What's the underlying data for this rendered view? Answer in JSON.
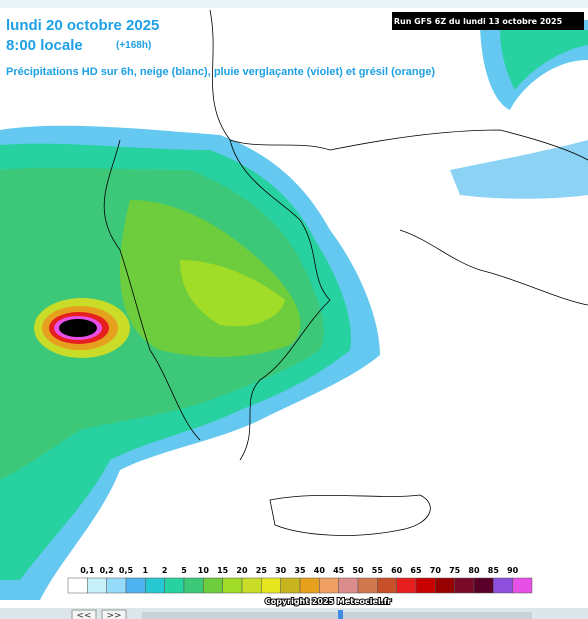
{
  "header": {
    "date": "lundi 20 octobre 2025",
    "time": "8:00 locale",
    "lead": "(+168h)",
    "subtitle": "Précipitations HD sur 6h, neige (blanc), pluie verglaçante (violet) et grésil (orange)",
    "run": "Run GFS 6Z du lundi 13 octobre 2025"
  },
  "legend": {
    "labels": [
      "0,1",
      "0,2",
      "0,5",
      "1",
      "2",
      "5",
      "10",
      "15",
      "20",
      "25",
      "30",
      "35",
      "40",
      "45",
      "50",
      "55",
      "60",
      "65",
      "70",
      "75",
      "80",
      "85",
      "90"
    ],
    "colors": [
      "#ffffff",
      "#c8f0fa",
      "#96dcfa",
      "#50b4f0",
      "#28c8d2",
      "#28d2a0",
      "#3cc878",
      "#6ecd3c",
      "#a0dc28",
      "#c8dc28",
      "#e6e61e",
      "#c8b41e",
      "#e6a01e",
      "#f0a064",
      "#dc8c8c",
      "#d27850",
      "#c85028",
      "#e61e1e",
      "#c80000",
      "#960000",
      "#780a28",
      "#5a0028",
      "#8c50dc",
      "#e650e6"
    ],
    "copyright": "Copyright 2025 Meteociel.fr"
  },
  "nav": {
    "prev": "<<",
    "next": ">>"
  }
}
